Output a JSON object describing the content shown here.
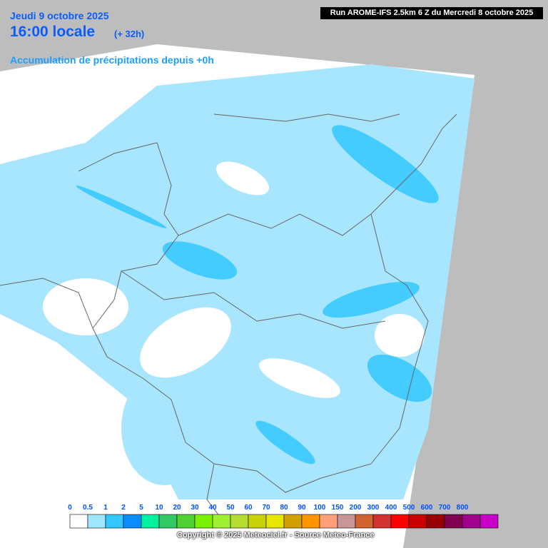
{
  "header": {
    "date": "Jeudi 9 octobre 2025",
    "hour": "16:00 locale",
    "lead": "(+ 32h)",
    "subtitle": "Accumulation de précipitations depuis +0h",
    "run": "Run AROME-IFS 2.5km 6 Z du Mercredi 8 octobre 2025"
  },
  "legend": {
    "labels": [
      "0",
      "0.5",
      "1",
      "2",
      "5",
      "10",
      "20",
      "30",
      "40",
      "50",
      "60",
      "70",
      "80",
      "90",
      "100",
      "150",
      "200",
      "300",
      "400",
      "500",
      "600",
      "700",
      "800"
    ],
    "colors": [
      "#ffffff",
      "#a0e6ff",
      "#32c8ff",
      "#0a8cff",
      "#00f0a0",
      "#32c864",
      "#50d232",
      "#78f000",
      "#a0f032",
      "#b4dc32",
      "#c8d20a",
      "#e6e600",
      "#d2a000",
      "#ff9600",
      "#ffa078",
      "#c89696",
      "#d26432",
      "#d23232",
      "#ff0000",
      "#c80000",
      "#960000",
      "#820050",
      "#a0008c",
      "#c800c8"
    ]
  },
  "footer": {
    "copyright": "Copyright © 2025 Meteociel.fr - Source Meteo-France"
  }
}
